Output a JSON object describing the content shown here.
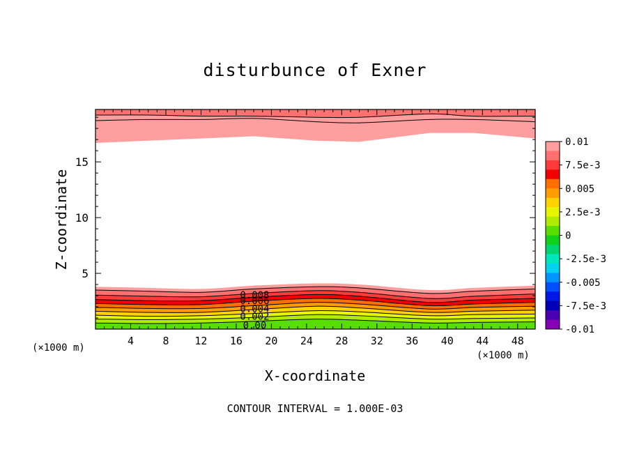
{
  "chart_data": {
    "type": "heatmap",
    "title": "disturbunce of Exner",
    "xlabel": "X-coordinate",
    "ylabel": "Z-coordinate",
    "x_unit_label": "(×1000 m)",
    "footnote": "CONTOUR INTERVAL = 1.000E-03",
    "xlim": [
      0,
      50
    ],
    "ylim": [
      0,
      19.7
    ],
    "x_ticks": [
      4,
      8,
      12,
      16,
      20,
      24,
      28,
      32,
      36,
      40,
      44,
      48
    ],
    "y_ticks": [
      5,
      10,
      15
    ],
    "contour_interval": 0.001,
    "contour_labels": [
      "0.008",
      "0.006",
      "0.004",
      "0.002",
      "0.00"
    ],
    "colorbar": {
      "range": [
        -0.01,
        0.01
      ],
      "tick_labels": [
        "0.01",
        "7.5e-3",
        "0.005",
        "2.5e-3",
        "0",
        "-2.5e-3",
        "-0.005",
        "-7.5e-3",
        "-0.01"
      ],
      "colors": [
        "#ff9e9e",
        "#ff7070",
        "#ff3a3a",
        "#f00000",
        "#ff6f00",
        "#ff9d00",
        "#ffd200",
        "#e6f500",
        "#b0ec00",
        "#58de00",
        "#10d21a",
        "#00d46e",
        "#00e6bc",
        "#00d2f0",
        "#0096ff",
        "#0050ff",
        "#0018e6",
        "#0000b8",
        "#4a00b0",
        "#8800b6"
      ]
    },
    "surface_layer_bands": [
      {
        "value": 0.0095,
        "top_z": [
          3.8,
          3.7,
          3.6,
          3.9,
          4.1,
          4.0,
          3.5,
          3.7,
          3.9
        ]
      },
      {
        "value": 0.0085,
        "top_z": [
          3.5,
          3.4,
          3.3,
          3.6,
          3.8,
          3.7,
          3.2,
          3.4,
          3.6
        ]
      },
      {
        "value": 0.0075,
        "top_z": [
          3.05,
          2.95,
          2.9,
          3.2,
          3.45,
          3.3,
          2.75,
          2.95,
          3.15
        ]
      },
      {
        "value": 0.0065,
        "top_z": [
          2.65,
          2.55,
          2.55,
          2.85,
          3.1,
          2.95,
          2.4,
          2.6,
          2.75
        ]
      },
      {
        "value": 0.0055,
        "top_z": [
          2.3,
          2.2,
          2.2,
          2.5,
          2.75,
          2.6,
          2.1,
          2.25,
          2.4
        ]
      },
      {
        "value": 0.0045,
        "top_z": [
          1.95,
          1.85,
          1.85,
          2.1,
          2.4,
          2.25,
          1.8,
          1.95,
          2.05
        ]
      },
      {
        "value": 0.0035,
        "top_z": [
          1.6,
          1.5,
          1.5,
          1.75,
          2.05,
          1.9,
          1.5,
          1.6,
          1.7
        ]
      },
      {
        "value": 0.0025,
        "top_z": [
          1.25,
          1.15,
          1.2,
          1.4,
          1.65,
          1.55,
          1.2,
          1.3,
          1.35
        ]
      },
      {
        "value": 0.0015,
        "top_z": [
          0.9,
          0.85,
          0.9,
          1.05,
          1.3,
          1.2,
          0.9,
          0.95,
          1.0
        ]
      },
      {
        "value": 0.0005,
        "top_z": [
          0.55,
          0.5,
          0.55,
          0.7,
          0.9,
          0.8,
          0.55,
          0.6,
          0.65
        ]
      }
    ],
    "top_layer_bands": [
      {
        "value": 0.0085,
        "bottom_z": [
          19.2,
          19.2,
          19.1,
          19.1,
          19.0,
          19.0,
          19.3,
          19.1,
          19.1
        ]
      },
      {
        "value": 0.0095,
        "bottom_z": [
          18.7,
          18.8,
          18.8,
          18.9,
          18.6,
          18.5,
          18.8,
          18.8,
          18.6
        ]
      },
      {
        "value": 0.0095,
        "bottom_z": [
          17.9,
          18.0,
          18.1,
          18.2,
          17.9,
          17.8,
          18.3,
          18.4,
          18.0
        ]
      },
      {
        "value": 0.0095,
        "bottom_z": [
          16.7,
          16.9,
          17.1,
          17.3,
          16.9,
          16.8,
          17.6,
          17.6,
          17.1
        ]
      }
    ],
    "band_x": [
      0,
      6,
      12,
      18,
      25,
      30,
      38,
      43,
      50
    ]
  }
}
